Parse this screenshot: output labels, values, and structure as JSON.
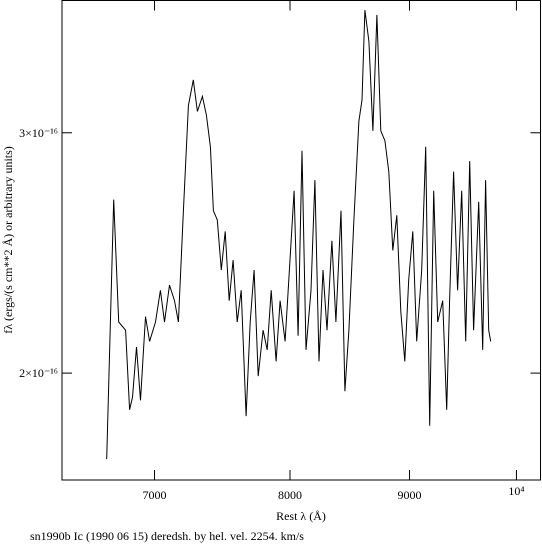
{
  "chart_data": {
    "type": "line",
    "xlabel": "Rest λ (Å)",
    "ylabel": "fλ (ergs/(s cm**2 Å) or arbitrary units)",
    "caption": "sn1990b Ic (1990 06 15) deredsh. by hel. vel.  2254. km/s",
    "xscale": "log",
    "yscale": "log",
    "xlim": [
      6390,
      10240
    ],
    "ylim": [
      1.67e-16,
      3.75e-16
    ],
    "xticks": [
      7000,
      8000,
      9000,
      {
        "value": 10000,
        "label": "10⁴"
      }
    ],
    "yticks": [
      {
        "value": 2e-16,
        "label": "2×10⁻¹⁶"
      },
      {
        "value": 3e-16,
        "label": "3×10⁻¹⁶"
      }
    ],
    "color": "#000000",
    "x": [
      6678,
      6724,
      6757,
      6803,
      6830,
      6850,
      6877,
      6904,
      6938,
      6966,
      7007,
      7041,
      7069,
      7104,
      7139,
      7167,
      7202,
      7238,
      7273,
      7302,
      7338,
      7367,
      7396,
      7418,
      7447,
      7476,
      7505,
      7535,
      7564,
      7594,
      7624,
      7661,
      7692,
      7722,
      7753,
      7791,
      7822,
      7853,
      7891,
      7922,
      7961,
      7993,
      8032,
      8064,
      8095,
      8127,
      8167,
      8199,
      8232,
      8264,
      8297,
      8337,
      8370,
      8412,
      8445,
      8478,
      8520,
      8562,
      8588,
      8613,
      8647,
      8681,
      8715,
      8749,
      8784,
      8818,
      8853,
      8888,
      8923,
      8958,
      8993,
      9029,
      9064,
      9109,
      9145,
      9181,
      9217,
      9253,
      9299,
      9336,
      9363,
      9400,
      9437,
      9475,
      9512,
      9550,
      9587,
      9635,
      9673,
      9701,
      9730,
      9750
    ],
    "values": [
      1.73e-16,
      2.68e-16,
      2.18e-16,
      2.15e-16,
      1.88e-16,
      1.92e-16,
      2.09e-16,
      1.91e-16,
      2.2e-16,
      2.11e-16,
      2.18e-16,
      2.3e-16,
      2.18e-16,
      2.32e-16,
      2.26e-16,
      2.18e-16,
      2.63e-16,
      3.14e-16,
      3.28e-16,
      3.11e-16,
      3.19e-16,
      3.09e-16,
      2.93e-16,
      2.63e-16,
      2.59e-16,
      2.38e-16,
      2.54e-16,
      2.26e-16,
      2.42e-16,
      2.18e-16,
      2.3e-16,
      1.86e-16,
      2.18e-16,
      2.38e-16,
      1.99e-16,
      2.15e-16,
      2.08e-16,
      2.3e-16,
      2.04e-16,
      2.26e-16,
      2.11e-16,
      2.36e-16,
      2.72e-16,
      2.13e-16,
      2.91e-16,
      2.08e-16,
      2.3e-16,
      2.77e-16,
      2.04e-16,
      2.38e-16,
      2.15e-16,
      2.5e-16,
      2.18e-16,
      2.63e-16,
      1.94e-16,
      2.15e-16,
      2.59e-16,
      3.06e-16,
      3.17e-16,
      3.69e-16,
      3.5e-16,
      3.01e-16,
      3.66e-16,
      3.01e-16,
      2.96e-16,
      2.81e-16,
      2.46e-16,
      2.61e-16,
      2.22e-16,
      2.04e-16,
      2.34e-16,
      2.54e-16,
      2.11e-16,
      2.38e-16,
      2.93e-16,
      1.83e-16,
      2.72e-16,
      2.18e-16,
      2.26e-16,
      1.88e-16,
      2.26e-16,
      2.81e-16,
      2.3e-16,
      2.72e-16,
      2.11e-16,
      2.86e-16,
      2.15e-16,
      2.67e-16,
      2.08e-16,
      2.77e-16,
      2.15e-16,
      2.11e-16
    ]
  }
}
